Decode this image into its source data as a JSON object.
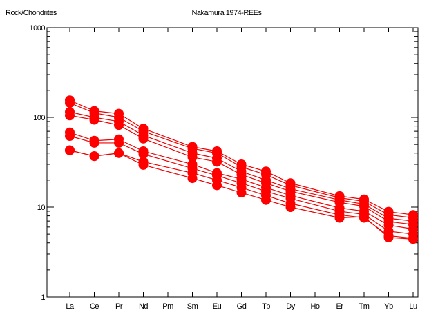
{
  "chart_data": {
    "type": "line",
    "title": "Nakamura 1974-REEs",
    "ylabel": "Rock/Chondrites",
    "yscale": "log",
    "ylim": [
      1,
      1000
    ],
    "yticks": [
      1,
      10,
      100,
      1000
    ],
    "ytick_labels": [
      "1",
      "10",
      "100",
      "1000"
    ],
    "categories": [
      "La",
      "Ce",
      "Pr",
      "Nd",
      "Pm",
      "Sm",
      "Eu",
      "Gd",
      "Tb",
      "Dy",
      "Ho",
      "Er",
      "Tm",
      "Yb",
      "Lu"
    ],
    "marker_color": "#ff0000",
    "line_color": "#ee0000",
    "series": [
      {
        "values": [
          155,
          118,
          110,
          75,
          null,
          47,
          42,
          30,
          25,
          18.5,
          null,
          13.3,
          12.2,
          8.9,
          8.2
        ]
      },
      {
        "values": [
          145,
          112,
          100,
          70,
          null,
          45,
          40,
          28,
          23,
          17.5,
          null,
          12.7,
          11.6,
          8.2,
          7.6
        ]
      },
      {
        "values": [
          115,
          100,
          90,
          63,
          null,
          40,
          35,
          25,
          20,
          16,
          null,
          12,
          10.8,
          7.5,
          7
        ]
      },
      {
        "values": [
          105,
          94,
          82,
          58,
          null,
          36,
          32,
          23,
          18.5,
          15,
          null,
          11.3,
          10.2,
          6.9,
          6.4
        ]
      },
      {
        "values": [
          68,
          55,
          57,
          42,
          null,
          30,
          24,
          20.5,
          16.5,
          13.5,
          null,
          9.8,
          9,
          6.3,
          5.7
        ]
      },
      {
        "values": [
          62,
          52,
          52,
          39,
          null,
          27,
          22.5,
          18.5,
          15,
          12.5,
          null,
          9,
          8.3,
          5.4,
          5
        ]
      },
      {
        "values": [
          43,
          37,
          40,
          32,
          null,
          24,
          20,
          16.5,
          13.5,
          11,
          null,
          8.2,
          7.6,
          4.8,
          4.5
        ]
      },
      {
        "values": [
          43,
          37,
          40,
          29.5,
          null,
          21,
          17.5,
          14.5,
          12,
          10,
          null,
          7.6,
          7.8,
          4.6,
          4.4
        ]
      }
    ]
  }
}
